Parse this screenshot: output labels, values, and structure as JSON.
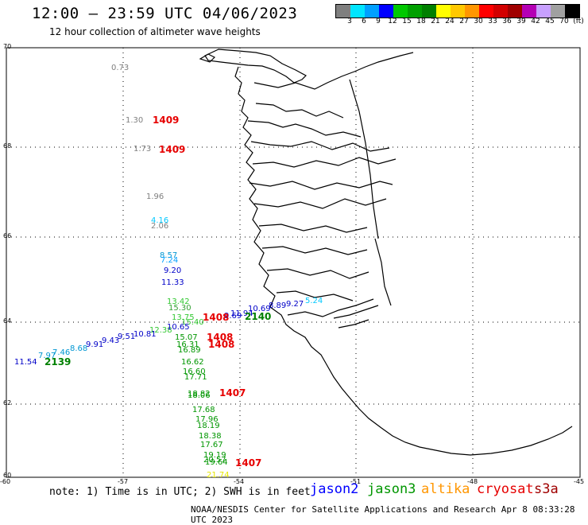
{
  "title": "12:00 – 23:59 UTC 04/06/2023",
  "subtitle": "12 hour collection of altimeter wave heights",
  "legend": {
    "colors": [
      "#7f7f7f",
      "#00e5ff",
      "#00a0ff",
      "#0000ff",
      "#00c800",
      "#00a000",
      "#008000",
      "#ffff00",
      "#ffc800",
      "#ff9600",
      "#ff0000",
      "#d20000",
      "#a00000",
      "#b400b4",
      "#c8a0ff",
      "#a0a0a0",
      "#000000"
    ],
    "labels": [
      "3",
      "6",
      "9",
      "12",
      "15",
      "18",
      "21",
      "24",
      "27",
      "30",
      "33",
      "36",
      "39",
      "42",
      "45",
      "70",
      "(ft)"
    ]
  },
  "axes": {
    "lat_labels": [
      "70",
      "68",
      "66",
      "64",
      "62",
      "60"
    ],
    "lon_labels": [
      "-60",
      "-57",
      "-54",
      "-51",
      "-48",
      "-45"
    ]
  },
  "observations": [
    {
      "text": "0.73",
      "color": "#7f7f7f",
      "sat": "gray"
    },
    {
      "text": "1.30",
      "color": "#7f7f7f"
    },
    {
      "text": "1.73",
      "color": "#7f7f7f"
    },
    {
      "text": "1.96",
      "color": "#7f7f7f"
    },
    {
      "text": "4.16",
      "color": "#00c8ff"
    },
    {
      "text": "2.06",
      "color": "#7f7f7f"
    },
    {
      "text": "8.57",
      "color": "#0096d2"
    },
    {
      "text": "7.24",
      "color": "#00a0ff"
    },
    {
      "text": "9.20",
      "color": "#0000c8"
    },
    {
      "text": "11.33",
      "color": "#0000c8"
    },
    {
      "text": "13.42",
      "color": "#32c832"
    },
    {
      "text": "15.30",
      "color": "#32a032"
    },
    {
      "text": "13.75",
      "color": "#32c832"
    },
    {
      "text": "15.40",
      "color": "#32c832"
    },
    {
      "text": "12.38",
      "color": "#32c832"
    },
    {
      "text": "10.65",
      "color": "#0000c8"
    },
    {
      "text": "15.07",
      "color": "#009600"
    },
    {
      "text": "16.31",
      "color": "#009600"
    },
    {
      "text": "16.89",
      "color": "#009600"
    },
    {
      "text": "16.62",
      "color": "#009600"
    },
    {
      "text": "16.60",
      "color": "#009600"
    },
    {
      "text": "17.71",
      "color": "#009600"
    },
    {
      "text": "18.82",
      "color": "#009600"
    },
    {
      "text": "18.06",
      "color": "#009600"
    },
    {
      "text": "17.68",
      "color": "#009600"
    },
    {
      "text": "17.96",
      "color": "#009600"
    },
    {
      "text": "18.19",
      "color": "#009600"
    },
    {
      "text": "18.38",
      "color": "#009600"
    },
    {
      "text": "17.67",
      "color": "#009600"
    },
    {
      "text": "19.19",
      "color": "#009600"
    },
    {
      "text": "20.57",
      "color": "#009600"
    },
    {
      "text": "19.64",
      "color": "#009600"
    },
    {
      "text": "21.74",
      "color": "#e6e600"
    },
    {
      "text": "11.54",
      "color": "#0000c8"
    },
    {
      "text": "7.97",
      "color": "#0096d2"
    },
    {
      "text": "7.46",
      "color": "#0096d2"
    },
    {
      "text": "8.68",
      "color": "#0096d2"
    },
    {
      "text": "9.91",
      "color": "#0000c8"
    },
    {
      "text": "9.43",
      "color": "#0000c8"
    },
    {
      "text": "9.51",
      "color": "#0000c8"
    },
    {
      "text": "10.81",
      "color": "#0000c8"
    },
    {
      "text": "11.94",
      "color": "#0000c8"
    },
    {
      "text": "10.69",
      "color": "#0000c8"
    },
    {
      "text": "9.69",
      "color": "#0000c8"
    },
    {
      "text": "8.89",
      "color": "#0000c8"
    },
    {
      "text": "9.27",
      "color": "#0000c8"
    },
    {
      "text": "5.24",
      "color": "#00c8ff"
    }
  ],
  "pass_labels": [
    {
      "text": "1409",
      "color": "#e60000"
    },
    {
      "text": "1409",
      "color": "#e60000"
    },
    {
      "text": "1408",
      "color": "#e60000"
    },
    {
      "text": "1408",
      "color": "#e60000"
    },
    {
      "text": "1408",
      "color": "#e60000"
    },
    {
      "text": "1407",
      "color": "#e60000"
    },
    {
      "text": "1407",
      "color": "#e60000"
    },
    {
      "text": "2140",
      "color": "#008000"
    },
    {
      "text": "2139",
      "color": "#008000"
    }
  ],
  "note": "note: 1) Time is in UTC; 2) SWH is in feet",
  "satellites": [
    {
      "name": "jason2",
      "color": "#0000ff"
    },
    {
      "name": "jason3",
      "color": "#009600"
    },
    {
      "name": "altika",
      "color": "#ff9600"
    },
    {
      "name": "cryosat",
      "color": "#e60000"
    },
    {
      "name": "s3a",
      "color": "#a00000"
    }
  ],
  "credit": "NOAA/NESDIS Center for Satellite Applications and Research   Apr  8 08:33:28 UTC 2023"
}
